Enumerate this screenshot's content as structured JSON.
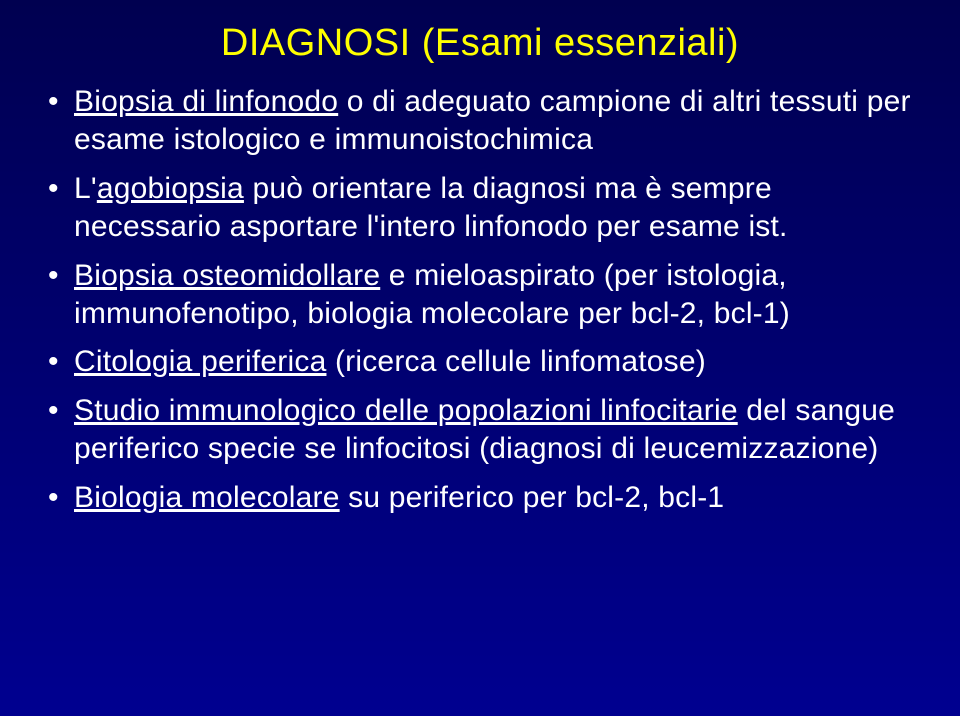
{
  "title": "DIAGNOSI (Esami essenziali)",
  "bullets": [
    {
      "pre": "",
      "u": "Biopsia di linfonodo",
      "post": " o di adeguato campione di altri tessuti per esame istologico e immunoistochimica"
    },
    {
      "pre": "L'",
      "u": "agobiopsia",
      "post": " può orientare la diagnosi ma è sempre necessario asportare l'intero linfonodo per esame ist."
    },
    {
      "pre": "",
      "u": "Biopsia osteomidollare",
      "post": " e mieloaspirato (per istologia, immunofenotipo, biologia molecolare per bcl-2, bcl-1)"
    },
    {
      "pre": "",
      "u": "Citologia periferica",
      "post": " (ricerca cellule linfomatose)"
    },
    {
      "pre": "",
      "u": "Studio immunologico delle popolazioni linfocitarie",
      "post": " del sangue periferico specie se linfocitosi (diagnosi di leucemizzazione)"
    },
    {
      "pre": "",
      "u": "Biologia molecolare",
      "post": " su periferico per bcl-2, bcl-1"
    }
  ]
}
